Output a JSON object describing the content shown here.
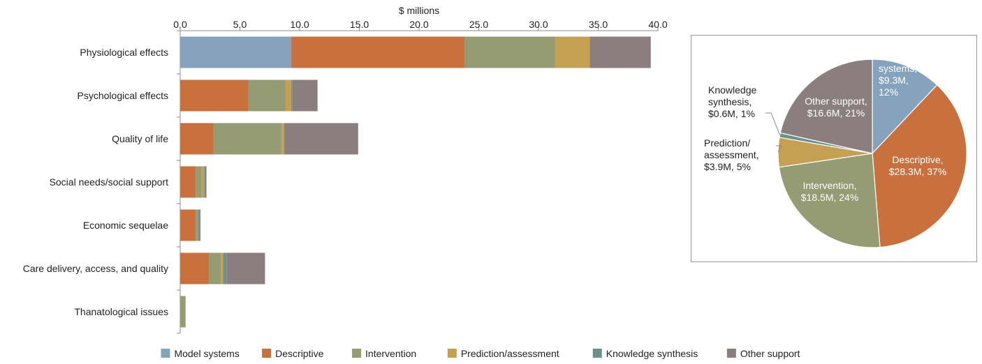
{
  "chart_data": [
    {
      "type": "bar",
      "orientation": "horizontal",
      "stacked": true,
      "xlabel": "$ millions",
      "axis_position": "top",
      "xlim": [
        0,
        40
      ],
      "xticks": [
        "0.0",
        "5.0",
        "10.0",
        "15.0",
        "20.0",
        "25.0",
        "30.0",
        "35.0",
        "40.0"
      ],
      "grid": false,
      "legend_position": "bottom",
      "categories": [
        "Physiological effects",
        "Psychological effects",
        "Quality of life",
        "Social needs/social support",
        "Economic sequelae",
        "Care delivery, access, and quality",
        "Thanatological issues"
      ],
      "series": [
        {
          "name": "Model systems",
          "color": "#86a3bd",
          "values": [
            9.3,
            0,
            0,
            0,
            0,
            0,
            0
          ]
        },
        {
          "name": "Descriptive",
          "color": "#c8703e",
          "values": [
            14.5,
            5.7,
            2.8,
            1.3,
            1.3,
            2.4,
            0
          ]
        },
        {
          "name": "Intervention",
          "color": "#959c74",
          "values": [
            7.6,
            3.1,
            5.7,
            0.5,
            0.2,
            1.0,
            0.45
          ]
        },
        {
          "name": "Prediction/assessment",
          "color": "#c6a052",
          "values": [
            2.9,
            0.5,
            0.2,
            0.2,
            0,
            0.2,
            0
          ]
        },
        {
          "name": "Knowledge synthesis",
          "color": "#6d918a",
          "values": [
            0,
            0.1,
            0,
            0.1,
            0.1,
            0.3,
            0
          ]
        },
        {
          "name": "Other support",
          "color": "#8a7f7e",
          "values": [
            5.1,
            2.1,
            6.2,
            0.1,
            0.1,
            3.2,
            0
          ]
        }
      ]
    },
    {
      "type": "pie",
      "slices": [
        {
          "name": "Model systems",
          "value": 9.3,
          "color": "#86a3bd",
          "label": [
            "Model",
            "systems,",
            "$9.3M,",
            "12%"
          ]
        },
        {
          "name": "Descriptive",
          "value": 28.3,
          "color": "#c8703e",
          "label": [
            "Descriptive,",
            "$28.3M, 37%"
          ]
        },
        {
          "name": "Intervention",
          "value": 18.5,
          "color": "#959c74",
          "label": [
            "Intervention,",
            "$18.5M, 24%"
          ]
        },
        {
          "name": "Prediction/assessment",
          "value": 3.9,
          "color": "#c6a052",
          "label": [
            "Prediction/",
            "assessment,",
            "$3.9M, 5%"
          ]
        },
        {
          "name": "Knowledge synthesis",
          "value": 0.6,
          "color": "#6d918a",
          "label": [
            "Knowledge",
            "synthesis,",
            "$0.6M, 1%"
          ]
        },
        {
          "name": "Other support",
          "value": 16.6,
          "color": "#8a7f7e",
          "label": [
            "Other support,",
            "$16.6M, 21%"
          ]
        }
      ]
    }
  ]
}
